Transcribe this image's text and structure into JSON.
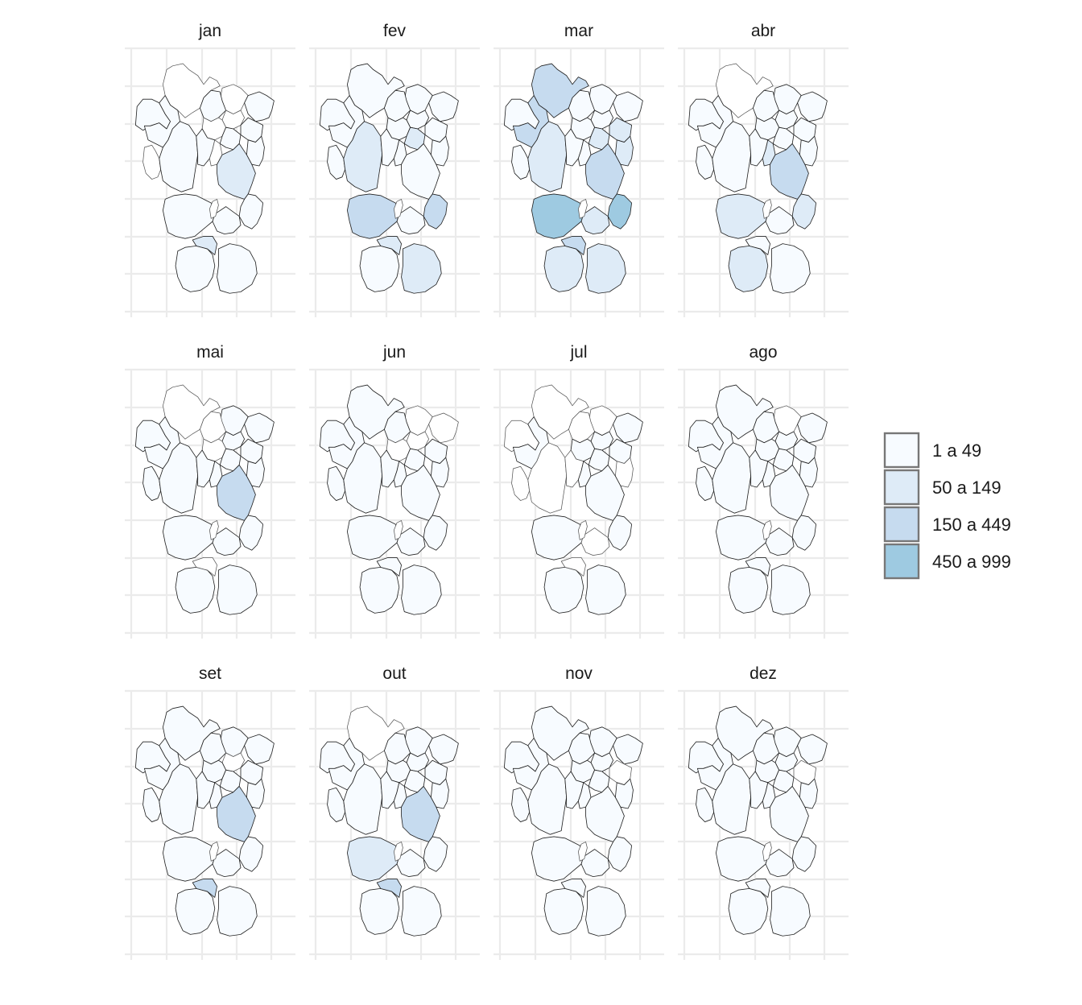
{
  "months": [
    {
      "label": "jan",
      "regions": [
        1,
        0,
        1,
        0,
        1,
        0,
        1,
        1,
        0,
        1,
        0,
        1,
        1,
        0,
        1,
        1,
        2,
        1,
        1,
        0,
        1,
        2,
        1
      ]
    },
    {
      "label": "fev",
      "regions": [
        1,
        1,
        1,
        1,
        1,
        1,
        2,
        1,
        1,
        1,
        1,
        1,
        2,
        1,
        1,
        3,
        1,
        3,
        1,
        0,
        1,
        2,
        2
      ]
    },
    {
      "label": "mar",
      "regions": [
        1,
        3,
        3,
        1,
        1,
        1,
        2,
        1,
        1,
        2,
        1,
        1,
        2,
        1,
        2,
        4,
        3,
        4,
        2,
        0,
        2,
        3,
        2
      ]
    },
    {
      "label": "abr",
      "regions": [
        1,
        0,
        1,
        1,
        1,
        1,
        1,
        1,
        1,
        1,
        1,
        1,
        1,
        2,
        1,
        2,
        3,
        2,
        1,
        0,
        2,
        1,
        1
      ]
    },
    {
      "label": "mai",
      "regions": [
        1,
        0,
        1,
        1,
        1,
        1,
        1,
        0,
        1,
        1,
        0,
        1,
        1,
        1,
        1,
        1,
        3,
        1,
        1,
        0,
        1,
        0,
        1
      ]
    },
    {
      "label": "jun",
      "regions": [
        1,
        1,
        1,
        0,
        0,
        1,
        1,
        1,
        0,
        1,
        0,
        1,
        1,
        1,
        1,
        1,
        1,
        1,
        1,
        0,
        1,
        1,
        1
      ]
    },
    {
      "label": "jul",
      "regions": [
        0,
        0,
        1,
        0,
        1,
        0,
        0,
        0,
        1,
        1,
        1,
        0,
        1,
        1,
        0,
        1,
        1,
        1,
        0,
        0,
        1,
        0,
        1
      ]
    },
    {
      "label": "ago",
      "regions": [
        1,
        1,
        1,
        0,
        1,
        1,
        1,
        1,
        1,
        1,
        1,
        1,
        1,
        1,
        1,
        1,
        1,
        1,
        1,
        0,
        1,
        1,
        1
      ]
    },
    {
      "label": "set",
      "regions": [
        1,
        1,
        1,
        1,
        1,
        1,
        1,
        1,
        0,
        1,
        1,
        1,
        1,
        1,
        1,
        1,
        3,
        1,
        1,
        0,
        1,
        3,
        1
      ]
    },
    {
      "label": "out",
      "regions": [
        1,
        0,
        1,
        1,
        1,
        1,
        1,
        1,
        1,
        1,
        1,
        1,
        1,
        1,
        1,
        2,
        3,
        1,
        1,
        0,
        1,
        3,
        1
      ]
    },
    {
      "label": "nov",
      "regions": [
        1,
        1,
        1,
        1,
        1,
        1,
        1,
        1,
        1,
        0,
        1,
        1,
        1,
        1,
        1,
        1,
        1,
        1,
        1,
        0,
        1,
        1,
        1
      ]
    },
    {
      "label": "dez",
      "regions": [
        1,
        1,
        1,
        1,
        1,
        1,
        1,
        1,
        1,
        0,
        1,
        1,
        1,
        1,
        1,
        1,
        1,
        1,
        1,
        0,
        1,
        1,
        1
      ]
    }
  ],
  "legend": {
    "items": [
      {
        "label": "1 a 49",
        "color": "#f7fbff"
      },
      {
        "label": "50 a 149",
        "color": "#deebf7"
      },
      {
        "label": "150 a 449",
        "color": "#c6dbef"
      },
      {
        "label": "450 a 999",
        "color": "#9ecae1"
      }
    ]
  },
  "colors": {
    "no_data": "#ffffff",
    "outline": "#222222",
    "grid": "#ebebeb",
    "legend_border": "#777777"
  }
}
